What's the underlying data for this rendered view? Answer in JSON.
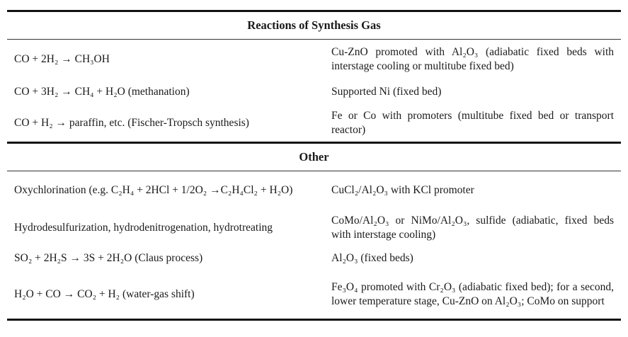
{
  "sections": [
    {
      "title": "Reactions of Synthesis Gas",
      "rows": [
        {
          "reaction": "CO + 2H₂ → CH₃OH",
          "catalyst": "Cu-ZnO promoted with Al₂O₃ (adiabatic fixed beds with interstage cooling or multitube fixed bed)"
        },
        {
          "reaction": "CO + 3H₂ → CH₄ + H₂O (methanation)",
          "catalyst": "Supported Ni (fixed bed)"
        },
        {
          "reaction": "CO + H₂ → paraffin, etc. (Fischer-Tropsch synthesis)",
          "catalyst": "Fe or Co with promoters (multitube fixed bed or transport reactor)"
        }
      ]
    },
    {
      "title": "Other",
      "rows": [
        {
          "reaction": "Oxychlorination (e.g. C₂H₄ + 2HCl + 1/2O₂ →C₂H₄Cl₂ + H₂O)",
          "catalyst": "CuCl₂/Al₂O₃ with KCl promoter"
        },
        {
          "reaction": "Hydrodesulfurization, hydrodenitrogenation, hydrotreating",
          "catalyst": "CoMo/Al₂O₃ or NiMo/Al₂O₃, sulfide (adiabatic, fixed beds with interstage cooling)"
        },
        {
          "reaction": "SO₂ + 2H₂S → 3S + 2H₂O (Claus process)",
          "catalyst": "Al₂O₃ (fixed beds)"
        },
        {
          "reaction": "H₂O + CO → CO₂ + H₂ (water-gas shift)",
          "catalyst": "Fe₃O₄ promoted with Cr₂O₃ (adiabatic fixed bed); for a second, lower temperature stage, Cu-ZnO on Al₂O₃; CoMo on support"
        }
      ]
    }
  ]
}
